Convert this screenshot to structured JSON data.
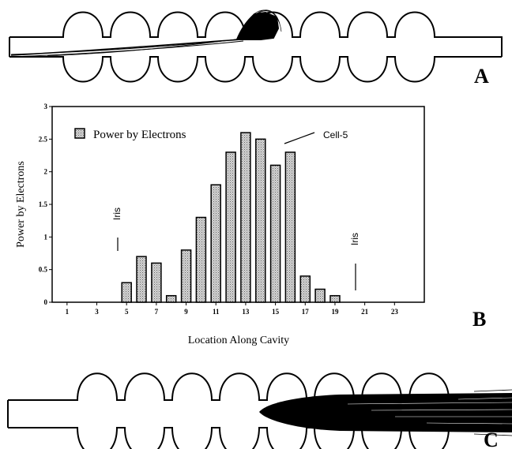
{
  "panels": {
    "a_label": "A",
    "b_label": "B",
    "c_label": "C"
  },
  "chart_data": {
    "type": "bar",
    "xlabel": "Location Along Cavity",
    "ylabel": "Power by Electrons",
    "legend": "Power by Electrons",
    "legend_position": "top-left",
    "grid": false,
    "x": [
      5,
      6,
      7,
      8,
      9,
      10,
      11,
      12,
      13,
      14,
      15,
      16,
      17,
      18,
      19
    ],
    "values": [
      0.3,
      0.7,
      0.6,
      0.1,
      0.8,
      1.3,
      1.8,
      2.3,
      2.6,
      2.5,
      2.1,
      2.3,
      0.4,
      0.2,
      0.1
    ],
    "xlim": [
      0,
      25
    ],
    "ylim": [
      0,
      3
    ],
    "xticks": [
      "1",
      "3",
      "5",
      "7",
      "9",
      "11",
      "13",
      "15",
      "17",
      "19",
      "21",
      "23"
    ],
    "xtick_values": [
      1,
      3,
      5,
      7,
      9,
      11,
      13,
      15,
      17,
      19,
      21,
      23
    ],
    "yticks": [
      "0",
      "0.5",
      "1",
      "1.5",
      "2",
      "2.5",
      "3"
    ],
    "ytick_values": [
      0,
      0.5,
      1,
      1.5,
      2,
      2.5,
      3
    ],
    "annotations": [
      {
        "text": "Iris",
        "x": 4.6,
        "y": 0.5
      },
      {
        "text": "Iris",
        "x": 19.3,
        "y": 0.3
      },
      {
        "text": "Cell-5",
        "x": 14.5,
        "y": 2.5
      }
    ]
  }
}
